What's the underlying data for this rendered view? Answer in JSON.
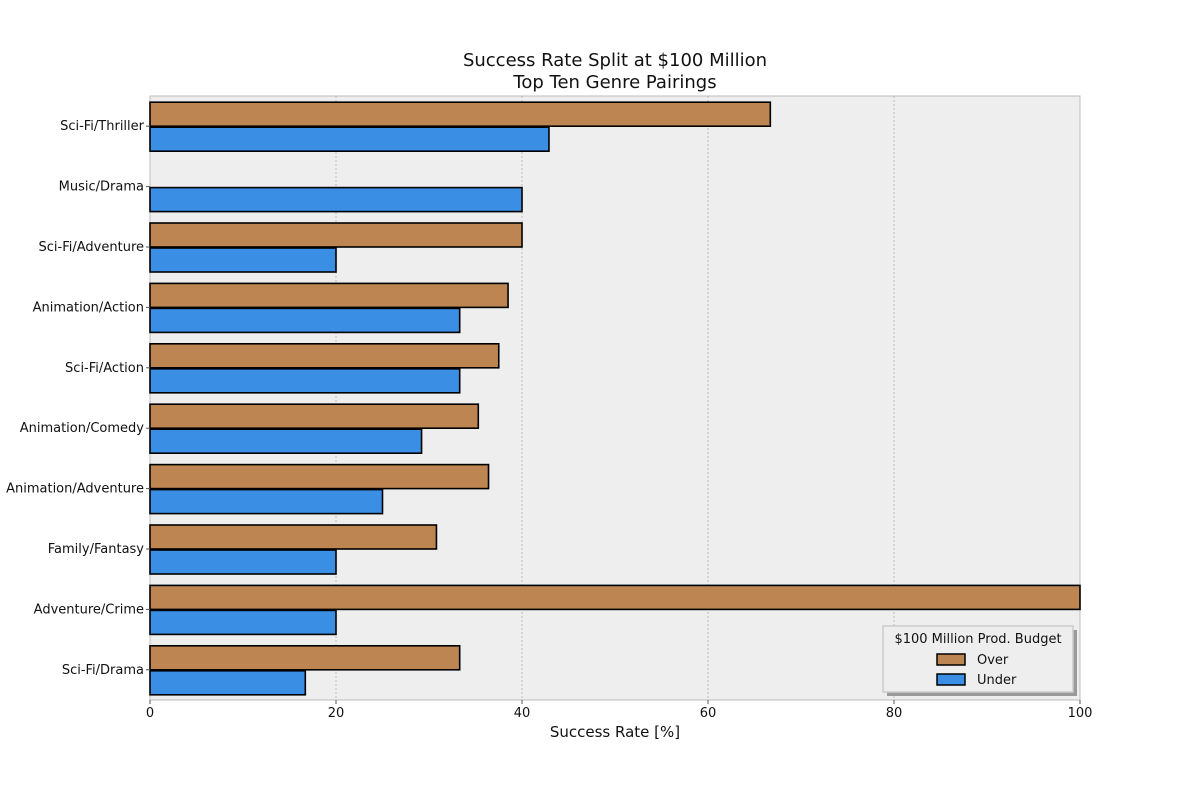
{
  "chart_data": {
    "type": "bar",
    "orientation": "horizontal",
    "title": [
      "Success Rate Split at $100 Million",
      "Top Ten Genre Pairings"
    ],
    "xlabel": "Success Rate [%]",
    "ylabel": "",
    "xlim": [
      0,
      100
    ],
    "xticks": [
      0,
      20,
      40,
      60,
      80,
      100
    ],
    "grid": true,
    "categories": [
      "Sci-Fi/Thriller",
      "Music/Drama",
      "Sci-Fi/Adventure",
      "Animation/Action",
      "Sci-Fi/Action",
      "Animation/Comedy",
      "Animation/Adventure",
      "Family/Fantasy",
      "Adventure/Crime",
      "Sci-Fi/Drama"
    ],
    "series": [
      {
        "name": "Over",
        "color": "#bc8551",
        "values": [
          66.7,
          0,
          40.0,
          38.5,
          37.5,
          35.3,
          36.4,
          30.8,
          100.0,
          33.3
        ]
      },
      {
        "name": "Under",
        "color": "#3a8ee4",
        "values": [
          42.9,
          40.0,
          20.0,
          33.3,
          33.3,
          29.2,
          25.0,
          20.0,
          20.0,
          16.7
        ]
      }
    ],
    "legend": {
      "title": "$100 Million Prod. Budget",
      "placement": "lower-right"
    }
  }
}
